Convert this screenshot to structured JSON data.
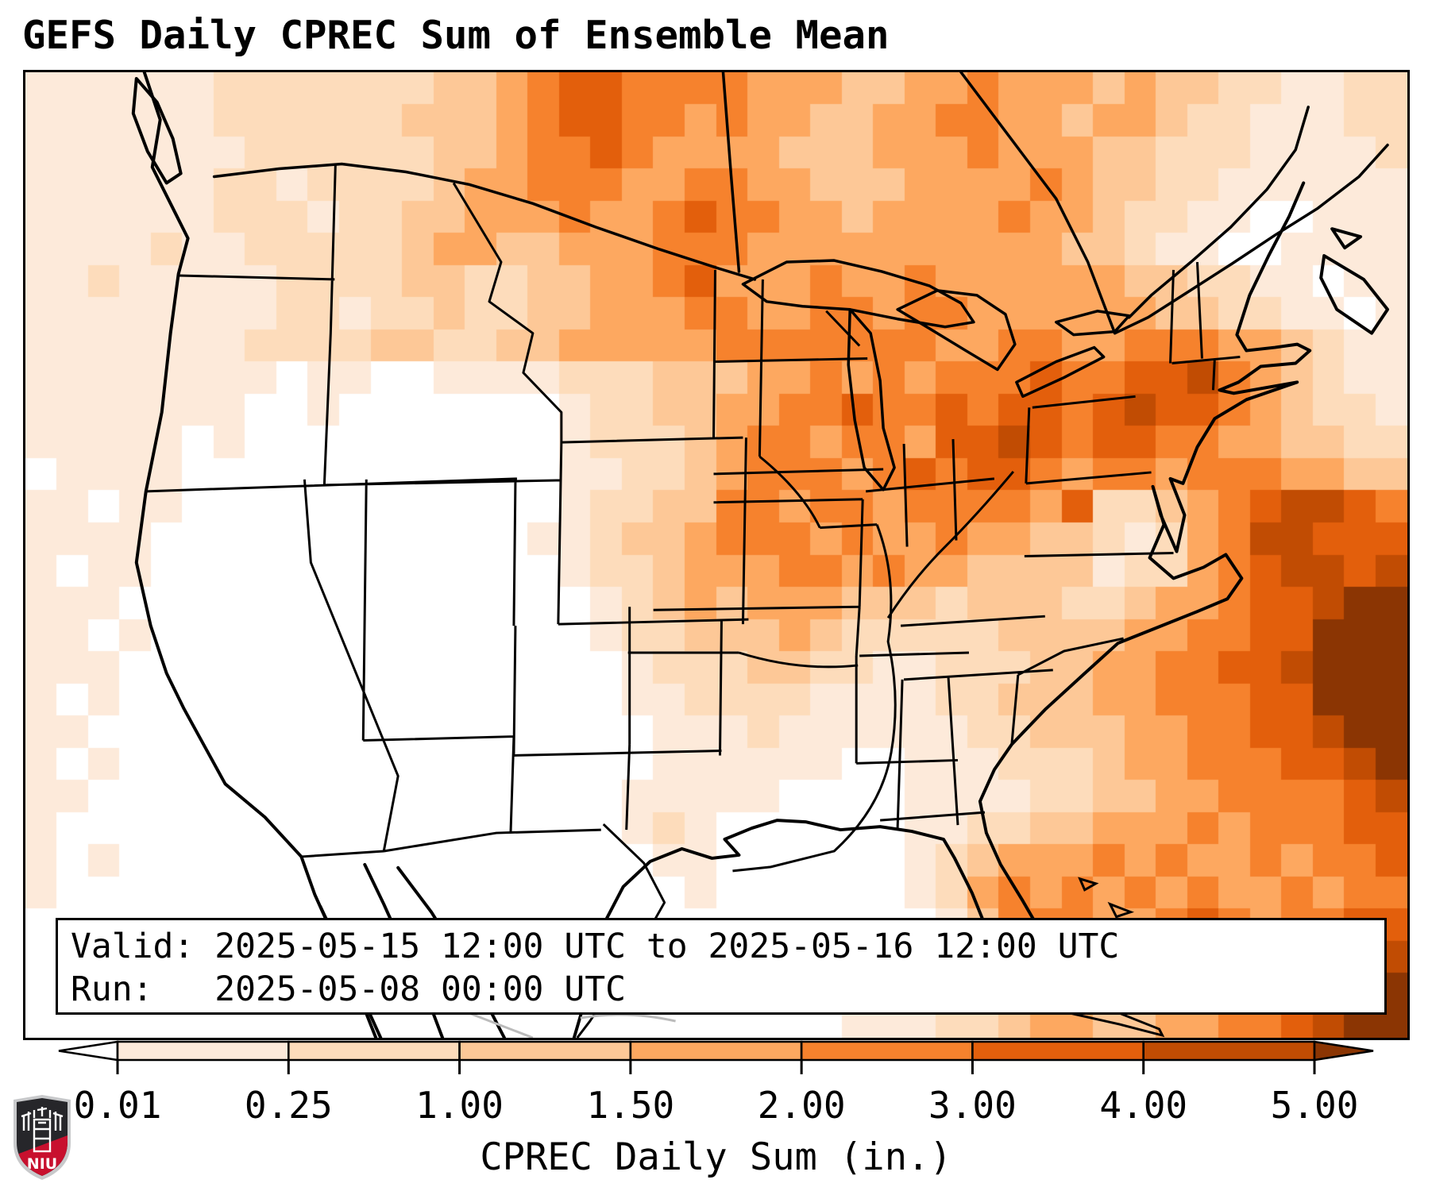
{
  "title": "GEFS Daily CPREC Sum of Ensemble Mean",
  "info_box": {
    "valid_line": "Valid: 2025-05-15 12:00 UTC to 2025-05-16 12:00 UTC",
    "run_line": "Run:   2025-05-08 00:00 UTC"
  },
  "colorbar": {
    "label": "CPREC Daily Sum (in.)",
    "tick_labels": [
      "0.01",
      "0.25",
      "1.00",
      "1.50",
      "2.00",
      "3.00",
      "4.00",
      "5.00"
    ],
    "under_color": "#ffffff",
    "over_color": "#8b3503",
    "segment_colors": [
      "#fdeada",
      "#fddcbb",
      "#fdc897",
      "#fda860",
      "#f6822d",
      "#e35f0c",
      "#c14c03"
    ],
    "outline_color": "#000000"
  },
  "logo": {
    "text": "NIU",
    "shield_black": "#26262a",
    "shield_red": "#c8102e",
    "shield_border": "#c8c9cb"
  },
  "chart_data": {
    "type": "heatmap",
    "title": "GEFS Daily CPREC Sum of Ensemble Mean",
    "variable": "CPREC Daily Sum (in.)",
    "valid": "2025-05-15 12:00 UTC to 2025-05-16 12:00 UTC",
    "run": "2025-05-08 00:00 UTC",
    "units": "in.",
    "bin_edges_in": [
      0.01,
      0.25,
      1.0,
      1.5,
      2.0,
      3.0,
      4.0,
      5.0
    ],
    "legend_position": "bottom",
    "palette": {
      ".": "#ffffff",
      "1": "#fdeada",
      "2": "#fddcbb",
      "3": "#fdc897",
      "4": "#fda860",
      "5": "#f6822d",
      "6": "#e35f0c",
      "7": "#c14c03",
      "8": "#8b3503"
    },
    "grid_note": "Approximate 44x30 downsample of plotted precipitation field; '.'=<0.01in, 1..7 = bins between edges, 8 = >5.00in",
    "grid_rows": [
      "11111122222223345665555444334454443433221122",
      "11111122222233345665545443344554434432211122",
      "11111112222223345565444433344454443322211112",
      "11111122122223445554455443334444543322111111",
      "111111222122334445445655443444454432211..111",
      "11112112222234433444555444444444433211..1111",
      "11211111222233223344564445445444444332211.11",
      "111111112212232233444554455455444444332211.1",
      "11111112222332233444445555555445544555443211",
      "11111111.11..1111222333445454555655667543211",
      "1111111..1.......122334455655656656766543221",
      "11111.1..........122234554554667656655443322",
      ".1111............112234555456566545545554433",
      "11.11............122335545545555462234567765",
      "1111............1123345554544544332124577666",
      "1.11.............122344455454433331224567767",
      "111...............12343444333233322344566788",
      "11.1..............12233343222223333445566888",
      "111................1222332211222334455667888",
      "1.1................1122221111223334455566888",
      "11..................111211111122333445566788",
      "1.1.................111111..1112223445556678",
      "11.................11111....1111223344555567",
      "1..................121......1122334445455566",
      "1.1.................11......1234445454454556",
      "1....................1......1245454545445455",
      ".............................135554456545566",
      ".............................124555455455677",
      "...........................11223444345556788",
      "..........................111223443344556788"
    ]
  }
}
